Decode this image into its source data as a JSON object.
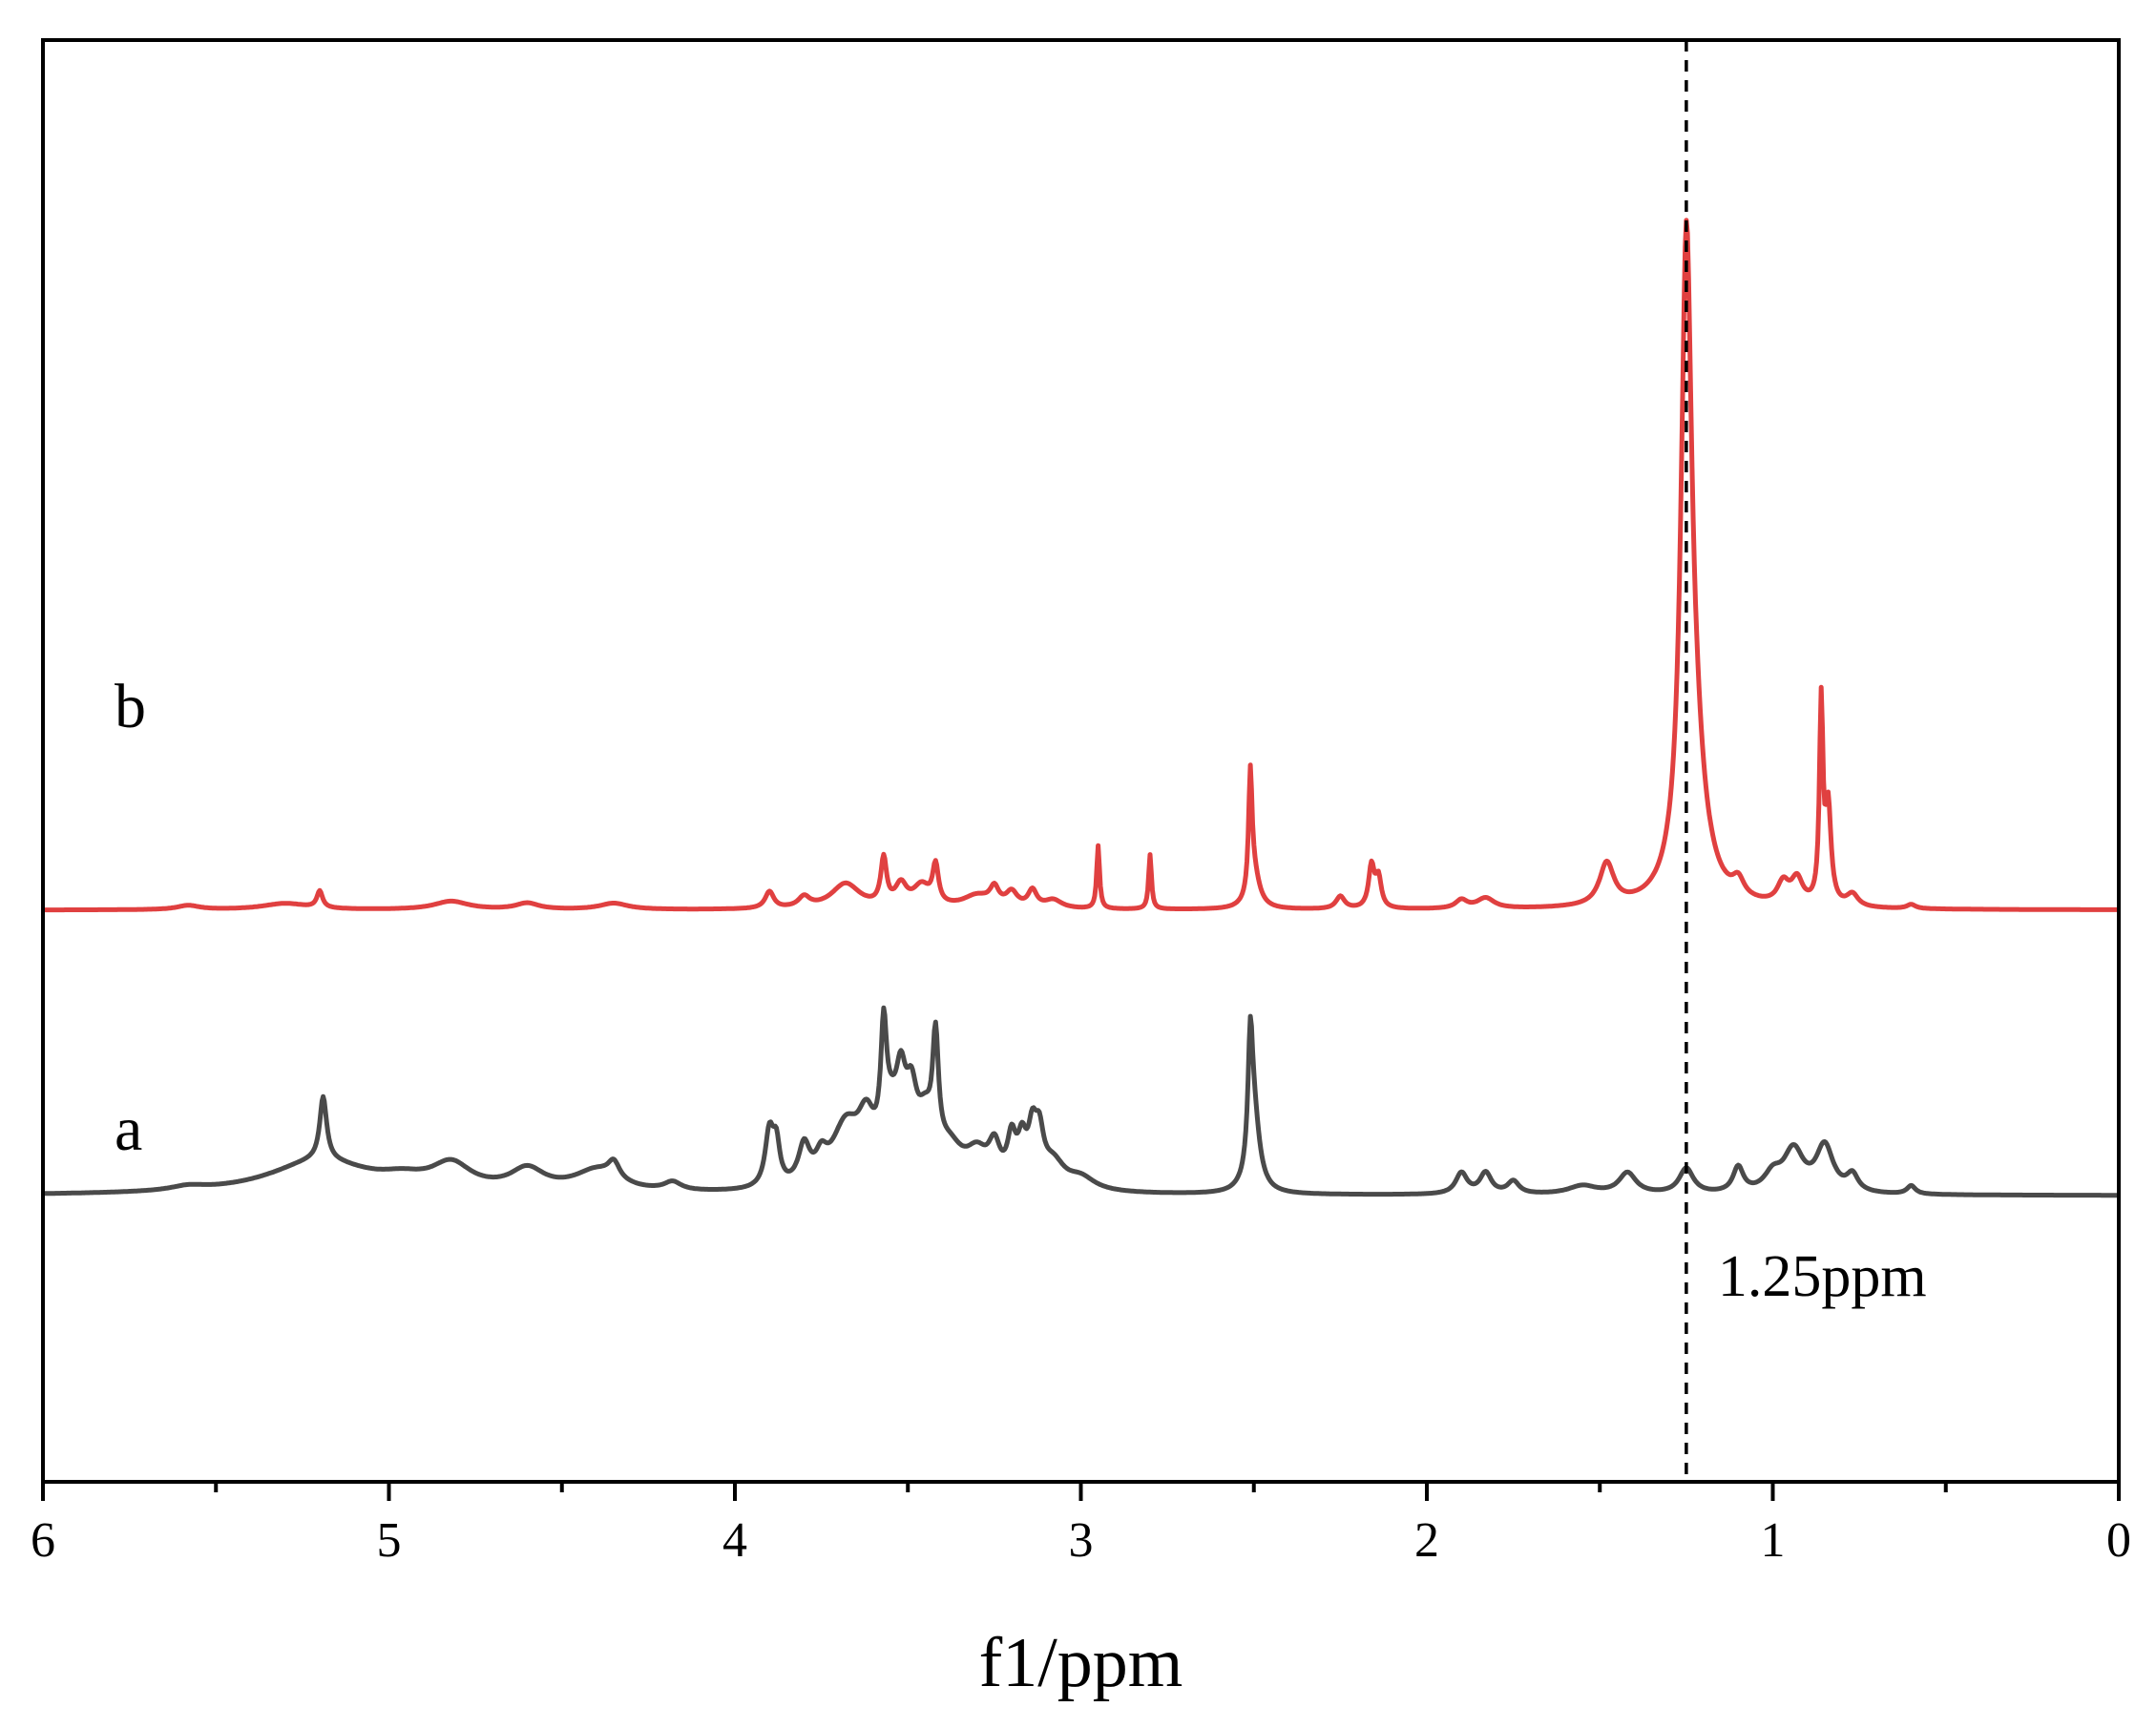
{
  "chart_data": {
    "type": "line",
    "title": "",
    "xlabel": "f1/ppm",
    "ylabel": "",
    "xlim": [
      6,
      0
    ],
    "x_reversed": true,
    "xticks": [
      6,
      5,
      4,
      3,
      2,
      1,
      0
    ],
    "xtick_labels": [
      "6",
      "5",
      "4",
      "3",
      "2",
      "1",
      "0"
    ],
    "minor_xticks": [
      5.5,
      4.5,
      3.5,
      2.5,
      1.5,
      0.5
    ],
    "grid": false,
    "legend": "none",
    "yaxis": "stacked spectra, arbitrary intensity",
    "series": [
      {
        "name": "a",
        "color": "#4a4a4a",
        "baseline": 0,
        "peaks": [
          [
            5.58,
            0.01,
            0.06
          ],
          [
            5.2,
            0.08,
            0.18
          ],
          [
            5.19,
            0.15,
            0.012
          ],
          [
            4.96,
            0.02,
            0.08
          ],
          [
            4.82,
            0.06,
            0.07
          ],
          [
            4.6,
            0.05,
            0.06
          ],
          [
            4.4,
            0.05,
            0.08
          ],
          [
            4.35,
            0.04,
            0.02
          ],
          [
            4.18,
            0.02,
            0.03
          ],
          [
            3.9,
            0.13,
            0.015
          ],
          [
            3.88,
            0.09,
            0.012
          ],
          [
            3.8,
            0.09,
            0.02
          ],
          [
            3.75,
            0.05,
            0.02
          ],
          [
            3.68,
            0.14,
            0.05
          ],
          [
            3.62,
            0.12,
            0.03
          ],
          [
            3.57,
            0.26,
            0.01
          ],
          [
            3.55,
            0.12,
            0.03
          ],
          [
            3.52,
            0.17,
            0.018
          ],
          [
            3.49,
            0.15,
            0.02
          ],
          [
            3.45,
            0.12,
            0.03
          ],
          [
            3.42,
            0.26,
            0.01
          ],
          [
            3.38,
            0.08,
            0.05
          ],
          [
            3.3,
            0.07,
            0.04
          ],
          [
            3.25,
            0.08,
            0.02
          ],
          [
            3.2,
            0.1,
            0.015
          ],
          [
            3.17,
            0.09,
            0.015
          ],
          [
            3.14,
            0.11,
            0.015
          ],
          [
            3.12,
            0.1,
            0.015
          ],
          [
            3.08,
            0.06,
            0.04
          ],
          [
            3.0,
            0.03,
            0.05
          ],
          [
            2.51,
            0.28,
            0.008
          ],
          [
            2.5,
            0.18,
            0.02
          ],
          [
            1.9,
            0.05,
            0.02
          ],
          [
            1.83,
            0.05,
            0.02
          ],
          [
            1.75,
            0.03,
            0.02
          ],
          [
            1.55,
            0.02,
            0.05
          ],
          [
            1.42,
            0.05,
            0.03
          ],
          [
            1.25,
            0.06,
            0.025
          ],
          [
            1.1,
            0.06,
            0.018
          ],
          [
            1.0,
            0.04,
            0.03
          ],
          [
            0.94,
            0.1,
            0.035
          ],
          [
            0.85,
            0.11,
            0.03
          ],
          [
            0.77,
            0.04,
            0.02
          ],
          [
            0.6,
            0.02,
            0.015
          ]
        ]
      },
      {
        "name": "b",
        "color": "#e04040",
        "baseline": 0.68,
        "peaks": [
          [
            5.58,
            0.01,
            0.04
          ],
          [
            5.2,
            0.04,
            0.01
          ],
          [
            5.3,
            0.015,
            0.08
          ],
          [
            4.82,
            0.02,
            0.06
          ],
          [
            4.6,
            0.015,
            0.04
          ],
          [
            4.35,
            0.015,
            0.05
          ],
          [
            3.9,
            0.04,
            0.015
          ],
          [
            3.8,
            0.025,
            0.02
          ],
          [
            3.68,
            0.06,
            0.05
          ],
          [
            3.57,
            0.11,
            0.01
          ],
          [
            3.52,
            0.05,
            0.02
          ],
          [
            3.46,
            0.05,
            0.03
          ],
          [
            3.42,
            0.09,
            0.01
          ],
          [
            3.3,
            0.03,
            0.05
          ],
          [
            3.25,
            0.04,
            0.015
          ],
          [
            3.2,
            0.035,
            0.02
          ],
          [
            3.14,
            0.04,
            0.015
          ],
          [
            3.08,
            0.02,
            0.03
          ],
          [
            2.95,
            0.15,
            0.005
          ],
          [
            2.8,
            0.13,
            0.005
          ],
          [
            2.51,
            0.28,
            0.006
          ],
          [
            2.5,
            0.08,
            0.02
          ],
          [
            2.25,
            0.03,
            0.015
          ],
          [
            2.16,
            0.1,
            0.01
          ],
          [
            2.14,
            0.07,
            0.01
          ],
          [
            1.9,
            0.02,
            0.02
          ],
          [
            1.83,
            0.025,
            0.03
          ],
          [
            1.48,
            0.1,
            0.025
          ],
          [
            1.25,
            1.4,
            0.018
          ],
          [
            1.23,
            0.3,
            0.04
          ],
          [
            1.1,
            0.04,
            0.02
          ],
          [
            0.97,
            0.05,
            0.02
          ],
          [
            0.93,
            0.06,
            0.02
          ],
          [
            0.86,
            0.47,
            0.006
          ],
          [
            0.84,
            0.23,
            0.01
          ],
          [
            0.77,
            0.03,
            0.02
          ],
          [
            0.6,
            0.01,
            0.015
          ]
        ]
      }
    ],
    "annotations": [
      {
        "type": "vline",
        "x": 1.25,
        "style": "dashed",
        "text": "1.25ppm"
      }
    ]
  }
}
